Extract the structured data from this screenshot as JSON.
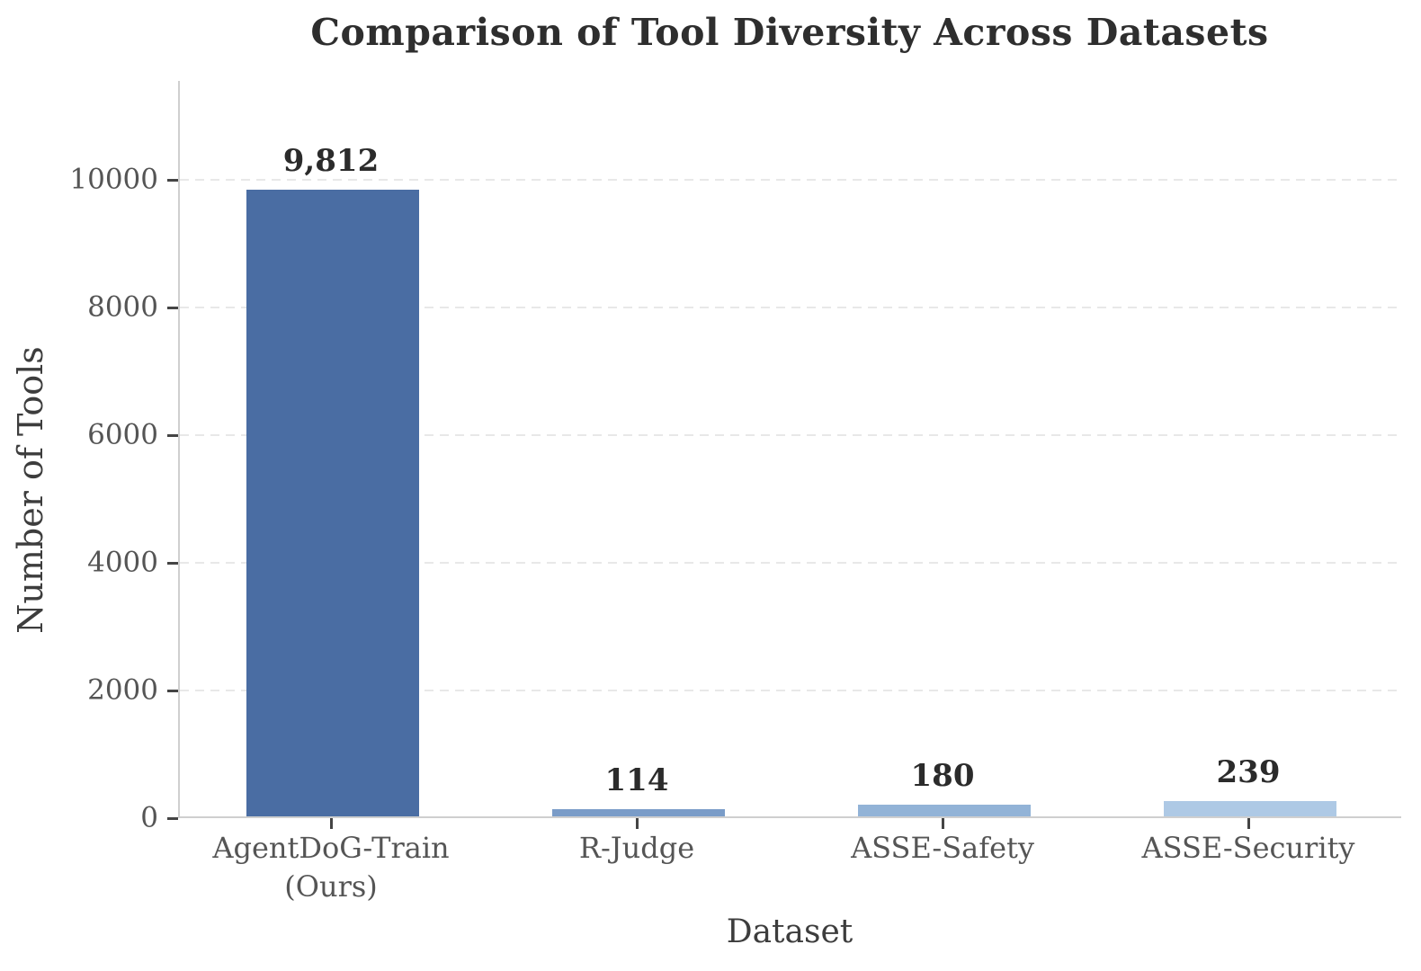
{
  "chart_data": {
    "type": "bar",
    "title": "Comparison of Tool Diversity Across Datasets",
    "xlabel": "Dataset",
    "ylabel": "Number of Tools",
    "categories": [
      "AgentDoG-Train\n(Ours)",
      "R-Judge",
      "ASSE-Safety",
      "ASSE-Security"
    ],
    "values": [
      9812,
      114,
      180,
      239
    ],
    "value_labels": [
      "9,812",
      "114",
      "180",
      "239"
    ],
    "bar_colors": [
      "#4a6da3",
      "#7a9cc8",
      "#92b3d7",
      "#aec9e5"
    ],
    "ylim": [
      0,
      11550
    ],
    "yticks": [
      0,
      2000,
      4000,
      6000,
      8000,
      10000
    ],
    "ytick_labels": [
      "0",
      "2000",
      "4000",
      "6000",
      "8000",
      "10000"
    ],
    "grid": {
      "axis": "y",
      "style": "dashed",
      "color": "#e8e8e8"
    },
    "legend": "none",
    "styles": {
      "title_color": "#2e2e2e",
      "axis_label_color": "#3d3d3d",
      "tick_label_color": "#555555",
      "tick_mark_color": "#444444",
      "value_label_color": "#2b2b2b",
      "spine_color": "#cfcfcf",
      "background": "#ffffff"
    }
  }
}
